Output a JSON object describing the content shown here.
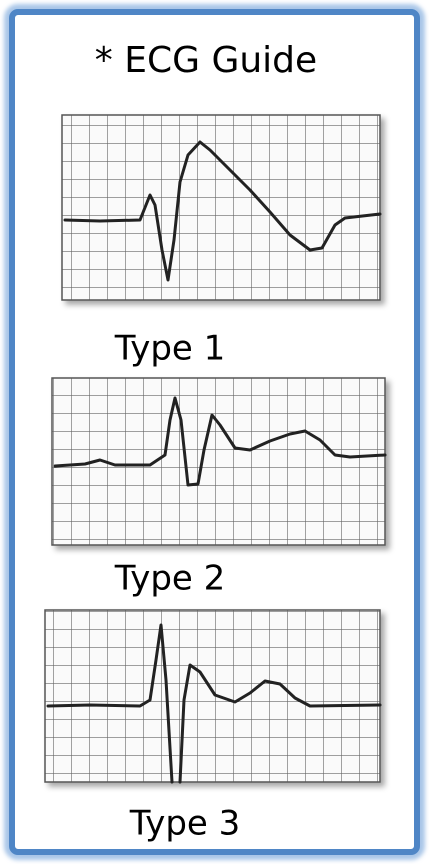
{
  "header": {
    "title": "* ECG Guide"
  },
  "panels": [
    {
      "label": "Type 1"
    },
    {
      "label": "Type 2"
    },
    {
      "label": "Type 3"
    }
  ]
}
